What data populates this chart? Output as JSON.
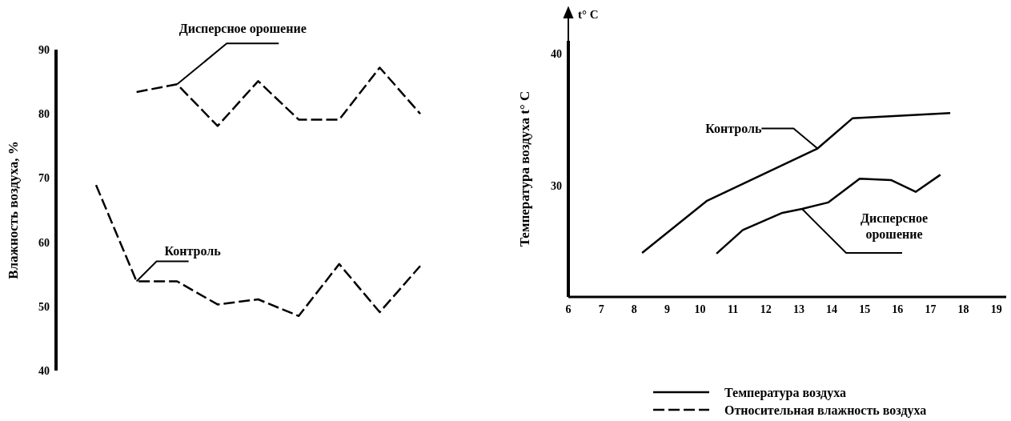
{
  "chart_data": [
    {
      "type": "line",
      "ylabel": "Влажность воздуха, %",
      "line_style": "dashed",
      "categories": [
        null,
        null,
        null,
        null,
        null,
        null,
        null,
        null,
        null
      ],
      "ylim": [
        40,
        90
      ],
      "yticks": [
        40,
        50,
        60,
        70,
        80,
        90
      ],
      "tick_labels": "y",
      "series": [
        {
          "name": "Дисперсное орошение",
          "color": "#000000",
          "values": [
            null,
            83.4,
            84.6,
            78.1,
            85.1,
            79.1,
            79.1,
            87.2,
            80.0
          ]
        },
        {
          "name": "Контроль",
          "color": "#000000",
          "values": [
            68.9,
            53.9,
            53.9,
            50.3,
            51.1,
            48.5,
            56.6,
            49.1,
            56.3
          ]
        }
      ]
    },
    {
      "type": "line",
      "ylabel": "Температура воздуха t° C",
      "line_style": "solid",
      "xlim": [
        6,
        19.3
      ],
      "xticks": [
        6,
        7,
        8,
        9,
        10,
        11,
        12,
        13,
        14,
        15,
        16,
        17,
        18,
        19
      ],
      "ylim": [
        21.5,
        41
      ],
      "yticks": [
        30,
        40
      ],
      "annotations": [
        "t° C",
        "Температура воздуха",
        "Относительная влажность воздуха"
      ],
      "series": [
        {
          "name": "Контроль",
          "color": "#000000",
          "x": [
            8.24,
            10.2,
            13.57,
            14.63,
            17.6
          ],
          "values": [
            24.85,
            28.8,
            32.8,
            35.1,
            35.5
          ]
        },
        {
          "name": "Дисперсное орошение",
          "color": "#000000",
          "x": [
            10.5,
            11.3,
            12.5,
            13.1,
            13.9,
            14.85,
            15.8,
            16.55,
            17.3
          ],
          "values": [
            24.8,
            26.6,
            27.9,
            28.2,
            28.7,
            30.5,
            30.4,
            29.5,
            30.8
          ]
        }
      ]
    }
  ]
}
